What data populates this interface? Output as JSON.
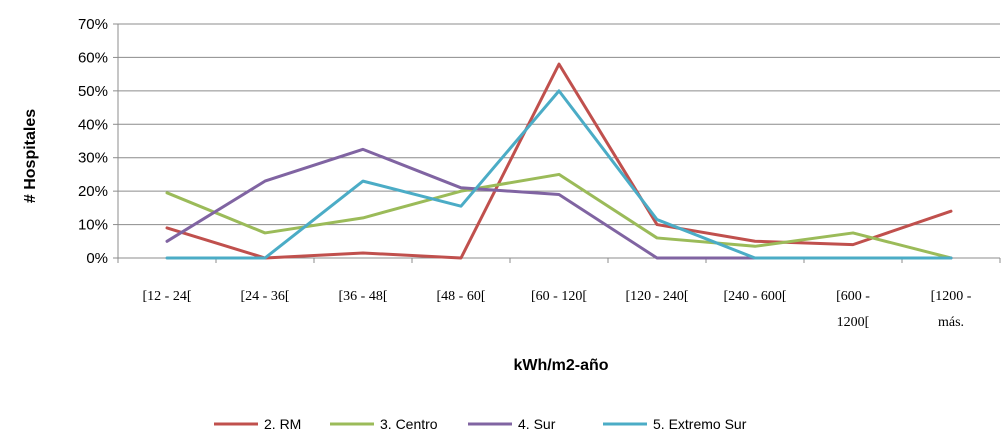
{
  "chart_data": {
    "type": "line",
    "xlabel": "kWh/m2-año",
    "ylabel": "# Hospitales",
    "ylim": [
      0,
      70
    ],
    "y_ticks": [
      "0%",
      "10%",
      "20%",
      "30%",
      "40%",
      "50%",
      "60%",
      "70%"
    ],
    "grid": "horizontal",
    "legend_position": "bottom",
    "categories": [
      [
        "[12 - 24["
      ],
      [
        "[24 - 36["
      ],
      [
        "[36 - 48["
      ],
      [
        "[48 - 60["
      ],
      [
        "[60 - 120["
      ],
      [
        "[120 - 240["
      ],
      [
        "[240 - 600["
      ],
      [
        "[600 -",
        "1200["
      ],
      [
        "[1200 -",
        "más."
      ]
    ],
    "series": [
      {
        "name": "2. RM",
        "color": "#C0504D",
        "values": [
          9,
          0,
          1.5,
          0,
          58,
          10,
          5,
          4,
          14
        ]
      },
      {
        "name": "3. Centro",
        "color": "#9BBB59",
        "values": [
          19.5,
          7.5,
          12,
          20,
          25,
          6,
          3.5,
          7.5,
          0
        ]
      },
      {
        "name": "4. Sur",
        "color": "#8064A2",
        "values": [
          5,
          23,
          32.5,
          21,
          19,
          0,
          0,
          0,
          0
        ]
      },
      {
        "name": "5. Extremo Sur",
        "color": "#4BACC6",
        "values": [
          0,
          0,
          23,
          15.5,
          50,
          11.5,
          0,
          0,
          0
        ]
      }
    ]
  }
}
